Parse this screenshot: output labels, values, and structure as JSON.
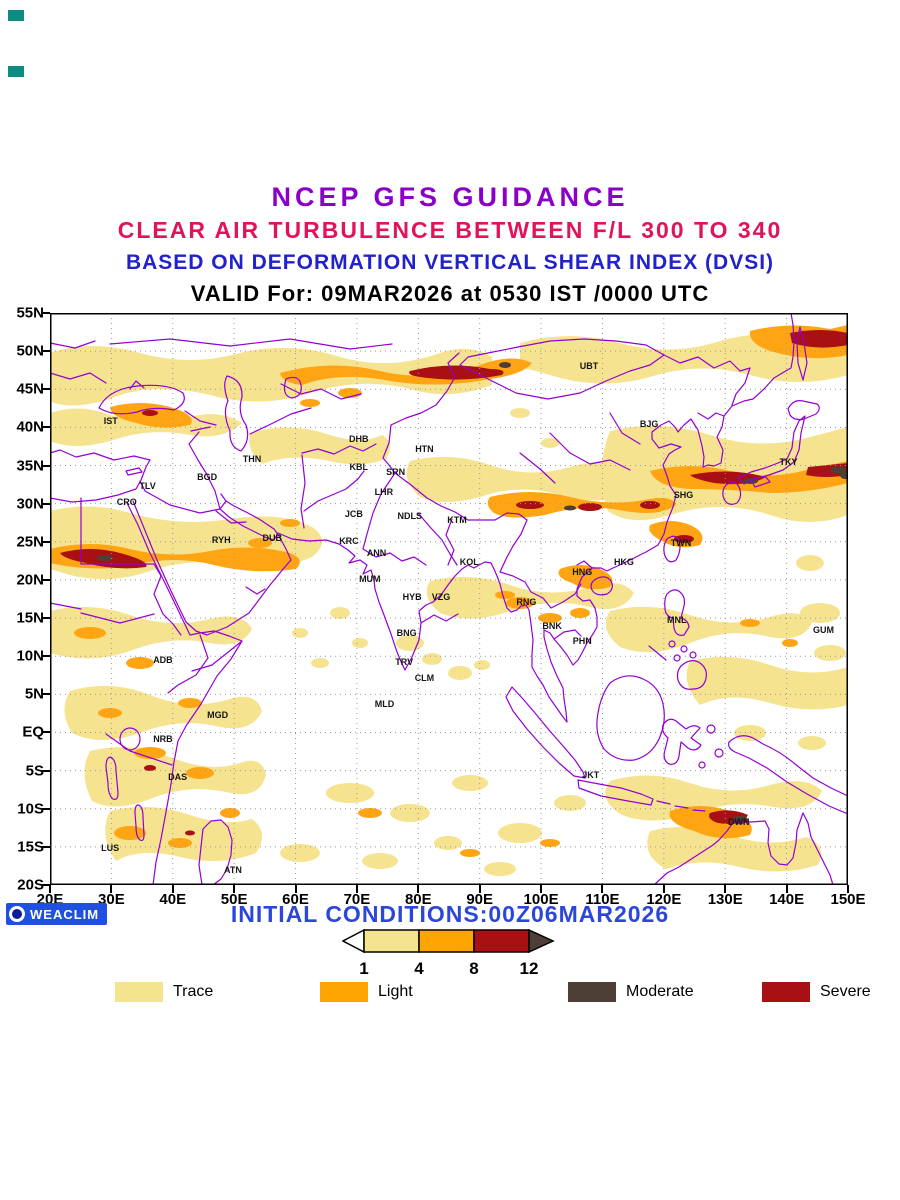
{
  "titles": {
    "line1": "NCEP GFS GUIDANCE",
    "line2": "CLEAR AIR TURBULENCE BETWEEN F/L 300 TO 340",
    "line3": "BASED ON DEFORMATION VERTICAL SHEAR INDEX (DVSI)",
    "line4": "VALID For: 09MAR2026 at 0530 IST /0000 UTC"
  },
  "map": {
    "lat_labels": [
      "55N",
      "50N",
      "45N",
      "40N",
      "35N",
      "30N",
      "25N",
      "20N",
      "15N",
      "10N",
      "5N",
      "EQ",
      "5S",
      "10S",
      "15S",
      "20S"
    ],
    "lon_labels": [
      "20E",
      "30E",
      "40E",
      "50E",
      "60E",
      "70E",
      "80E",
      "90E",
      "100E",
      "110E",
      "120E",
      "130E",
      "140E",
      "150E"
    ],
    "lon_range": [
      20,
      150
    ],
    "lat_range": [
      -20,
      55
    ],
    "stations": [
      {
        "code": "UBT",
        "lon": 107.8,
        "lat": 48.0
      },
      {
        "code": "IST",
        "lon": 29.9,
        "lat": 40.9
      },
      {
        "code": "TLV",
        "lon": 35.9,
        "lat": 32.3
      },
      {
        "code": "CRO",
        "lon": 32.5,
        "lat": 30.2
      },
      {
        "code": "THN",
        "lon": 52.9,
        "lat": 35.8
      },
      {
        "code": "BGD",
        "lon": 45.6,
        "lat": 33.5
      },
      {
        "code": "DHB",
        "lon": 70.3,
        "lat": 38.5
      },
      {
        "code": "KBL",
        "lon": 70.3,
        "lat": 34.8
      },
      {
        "code": "SRN",
        "lon": 76.3,
        "lat": 34.2
      },
      {
        "code": "LHR",
        "lon": 74.4,
        "lat": 31.5
      },
      {
        "code": "JCB",
        "lon": 69.5,
        "lat": 28.6
      },
      {
        "code": "NDLS",
        "lon": 78.6,
        "lat": 28.4
      },
      {
        "code": "HTN",
        "lon": 81.0,
        "lat": 37.2
      },
      {
        "code": "KRC",
        "lon": 68.7,
        "lat": 25.1
      },
      {
        "code": "RYH",
        "lon": 47.9,
        "lat": 25.2
      },
      {
        "code": "DUB",
        "lon": 56.2,
        "lat": 25.5
      },
      {
        "code": "ANN",
        "lon": 73.2,
        "lat": 23.5
      },
      {
        "code": "MUM",
        "lon": 72.1,
        "lat": 20.1
      },
      {
        "code": "HYB",
        "lon": 79.0,
        "lat": 17.8
      },
      {
        "code": "VZG",
        "lon": 83.7,
        "lat": 17.8
      },
      {
        "code": "BNG",
        "lon": 78.1,
        "lat": 13.0
      },
      {
        "code": "TRV",
        "lon": 77.7,
        "lat": 9.2
      },
      {
        "code": "CLM",
        "lon": 81.0,
        "lat": 7.1
      },
      {
        "code": "MLD",
        "lon": 74.5,
        "lat": 3.7
      },
      {
        "code": "KOL",
        "lon": 88.3,
        "lat": 22.4
      },
      {
        "code": "KTM",
        "lon": 86.3,
        "lat": 27.9
      },
      {
        "code": "RNG",
        "lon": 97.6,
        "lat": 17.1
      },
      {
        "code": "BNK",
        "lon": 101.8,
        "lat": 14.0
      },
      {
        "code": "PHN",
        "lon": 106.7,
        "lat": 12.0
      },
      {
        "code": "HNG",
        "lon": 106.7,
        "lat": 21.1
      },
      {
        "code": "HKG",
        "lon": 113.5,
        "lat": 22.4
      },
      {
        "code": "TWN",
        "lon": 122.8,
        "lat": 24.9
      },
      {
        "code": "SHG",
        "lon": 123.2,
        "lat": 31.2
      },
      {
        "code": "BJG",
        "lon": 117.6,
        "lat": 40.4
      },
      {
        "code": "TKY",
        "lon": 140.3,
        "lat": 35.5
      },
      {
        "code": "MNL",
        "lon": 122.1,
        "lat": 14.8
      },
      {
        "code": "GUM",
        "lon": 146.0,
        "lat": 13.5
      },
      {
        "code": "JKT",
        "lon": 108.1,
        "lat": -5.6
      },
      {
        "code": "DWN",
        "lon": 132.2,
        "lat": -11.7
      },
      {
        "code": "ADB",
        "lon": 38.4,
        "lat": 9.5
      },
      {
        "code": "MGD",
        "lon": 47.3,
        "lat": 2.3
      },
      {
        "code": "NRB",
        "lon": 38.4,
        "lat": -0.9
      },
      {
        "code": "DAS",
        "lon": 40.8,
        "lat": -5.9
      },
      {
        "code": "LUS",
        "lon": 29.8,
        "lat": -15.1
      },
      {
        "code": "ATN",
        "lon": 49.8,
        "lat": -18.0
      }
    ]
  },
  "footer": {
    "logo_text": "WEACLIM",
    "initial_conditions": "INITIAL CONDITIONS:00Z06MAR2026"
  },
  "scale": {
    "values": [
      "1",
      "4",
      "8",
      "12"
    ],
    "colors": [
      "#F5E48E",
      "#FFA500",
      "#A81014"
    ],
    "tip_color": "#4E3F36"
  },
  "legend": {
    "items": [
      {
        "label": "Trace",
        "color": "#F5E48E"
      },
      {
        "label": "Light",
        "color": "#FFA500"
      },
      {
        "label": "Moderate",
        "color": "#4E3F36"
      },
      {
        "label": "Severe",
        "color": "#A81014"
      }
    ]
  },
  "colors": {
    "title_purple": "#8B00C8",
    "title_pink": "#E0145A",
    "title_blue": "#2222CC",
    "map_outline": "#9400D3",
    "footer_blue": "#2B46D9",
    "trace": "#F6E38F",
    "light": "#FFA413",
    "severe": "#A81014",
    "moderate": "#4E3F36"
  }
}
